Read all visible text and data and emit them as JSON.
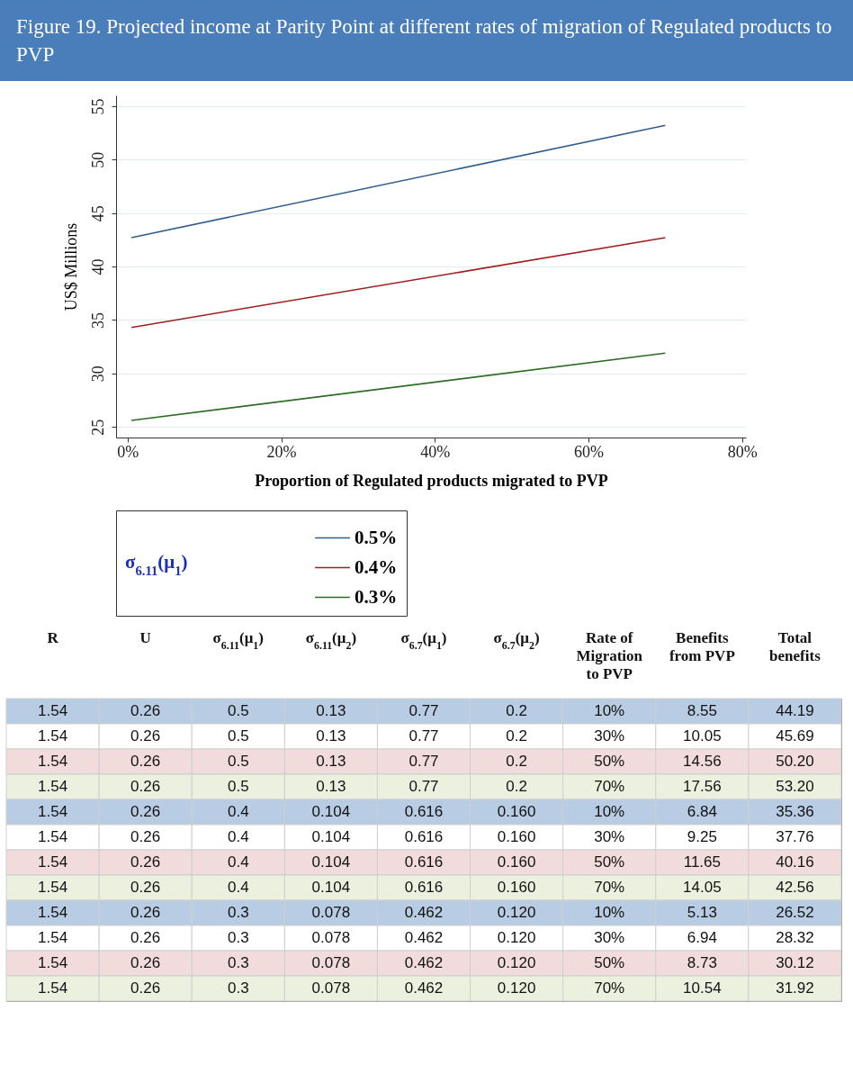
{
  "chart_data": [
    {
      "type": "line",
      "title": "Figure 19. Projected income at Parity Point at different rates of migration of Regulated products to PVP",
      "xlabel": "Proportion of Regulated products migrated to PVP",
      "ylabel": "US$ Millions",
      "legend_title": "σ$_{6.11}$(μ$_{1}$)",
      "legend": "bottom",
      "grid": "y",
      "x": [
        0.5,
        70
      ],
      "series": [
        {
          "name": "0.5%",
          "color": "#2f5d8c",
          "values": [
            42.7,
            53.2
          ]
        },
        {
          "name": "0.4%",
          "color": "#9c1f1f",
          "values": [
            34.3,
            42.7
          ]
        },
        {
          "name": "0.3%",
          "color": "#2e6b25",
          "values": [
            25.6,
            31.9
          ]
        }
      ],
      "xlim": [
        -1.5,
        80.5
      ],
      "xticks": [
        {
          "value": 0,
          "label": "0%"
        },
        {
          "value": 20,
          "label": "20%"
        },
        {
          "value": 40,
          "label": "40%"
        },
        {
          "value": 60,
          "label": "60%"
        },
        {
          "value": 80,
          "label": "80%"
        }
      ],
      "ylim": [
        24,
        56
      ],
      "yticks": [
        25,
        30,
        35,
        40,
        45,
        50,
        55
      ]
    },
    {
      "type": "heatmap",
      "categories": [
        "R",
        "U",
        "σ$_{6.11}$(μ$_{1}$)",
        "σ$_{6.11}$(μ$_{2}$)",
        "σ$_{6.7}$(μ$_{1}$)",
        "σ$_{6.7}$(μ$_{2}$)",
        "Rate of Migration to PVP",
        "Benefits from PVP",
        "Total benefits"
      ],
      "y_categories": [
        null,
        null,
        null,
        null,
        null,
        null,
        null,
        null,
        null,
        null,
        null,
        null
      ],
      "colors": [
        "#b8cce4",
        "#ffffff",
        "#f2dcdb",
        "#ebf1de",
        "#b8cce4",
        "#ffffff",
        "#f2dcdb",
        "#ebf1de",
        "#b8cce4",
        "#ffffff",
        "#f2dcdb",
        "#ebf1de"
      ],
      "cells": [
        [
          1.54,
          0.26,
          0.5,
          0.13,
          0.77,
          0.2,
          10,
          8.55,
          44.19
        ],
        [
          1.54,
          0.26,
          0.5,
          0.13,
          0.77,
          0.2,
          30,
          10.05,
          45.69
        ],
        [
          1.54,
          0.26,
          0.5,
          0.13,
          0.77,
          0.2,
          50,
          14.56,
          50.2
        ],
        [
          1.54,
          0.26,
          0.5,
          0.13,
          0.77,
          0.2,
          70,
          17.56,
          53.2
        ],
        [
          1.54,
          0.26,
          0.4,
          0.104,
          0.616,
          0.16,
          10,
          6.84,
          35.36
        ],
        [
          1.54,
          0.26,
          0.4,
          0.104,
          0.616,
          0.16,
          30,
          9.25,
          37.76
        ],
        [
          1.54,
          0.26,
          0.4,
          0.104,
          0.616,
          0.16,
          50,
          11.65,
          40.16
        ],
        [
          1.54,
          0.26,
          0.4,
          0.104,
          0.616,
          0.16,
          70,
          14.05,
          42.56
        ],
        [
          1.54,
          0.26,
          0.3,
          0.078,
          0.462,
          0.12,
          10,
          5.13,
          26.52
        ],
        [
          1.54,
          0.26,
          0.3,
          0.078,
          0.462,
          0.12,
          30,
          6.94,
          28.32
        ],
        [
          1.54,
          0.26,
          0.3,
          0.078,
          0.462,
          0.12,
          50,
          8.73,
          30.12
        ],
        [
          1.54,
          0.26,
          0.3,
          0.078,
          0.462,
          0.12,
          70,
          10.54,
          31.92
        ]
      ],
      "cell_labels": [
        [
          "1.54",
          "0.26",
          "0.5",
          "0.13",
          "0.77",
          "0.2",
          "10%",
          "8.55",
          "44.19"
        ],
        [
          "1.54",
          "0.26",
          "0.5",
          "0.13",
          "0.77",
          "0.2",
          "30%",
          "10.05",
          "45.69"
        ],
        [
          "1.54",
          "0.26",
          "0.5",
          "0.13",
          "0.77",
          "0.2",
          "50%",
          "14.56",
          "50.20"
        ],
        [
          "1.54",
          "0.26",
          "0.5",
          "0.13",
          "0.77",
          "0.2",
          "70%",
          "17.56",
          "53.20"
        ],
        [
          "1.54",
          "0.26",
          "0.4",
          "0.104",
          "0.616",
          "0.160",
          "10%",
          "6.84",
          "35.36"
        ],
        [
          "1.54",
          "0.26",
          "0.4",
          "0.104",
          "0.616",
          "0.160",
          "30%",
          "9.25",
          "37.76"
        ],
        [
          "1.54",
          "0.26",
          "0.4",
          "0.104",
          "0.616",
          "0.160",
          "50%",
          "11.65",
          "40.16"
        ],
        [
          "1.54",
          "0.26",
          "0.4",
          "0.104",
          "0.616",
          "0.160",
          "70%",
          "14.05",
          "42.56"
        ],
        [
          "1.54",
          "0.26",
          "0.3",
          "0.078",
          "0.462",
          "0.120",
          "10%",
          "5.13",
          "26.52"
        ],
        [
          "1.54",
          "0.26",
          "0.3",
          "0.078",
          "0.462",
          "0.120",
          "30%",
          "6.94",
          "28.32"
        ],
        [
          "1.54",
          "0.26",
          "0.3",
          "0.078",
          "0.462",
          "0.120",
          "50%",
          "8.73",
          "30.12"
        ],
        [
          "1.54",
          "0.26",
          "0.3",
          "0.078",
          "0.462",
          "0.120",
          "70%",
          "10.54",
          "31.92"
        ]
      ]
    }
  ]
}
